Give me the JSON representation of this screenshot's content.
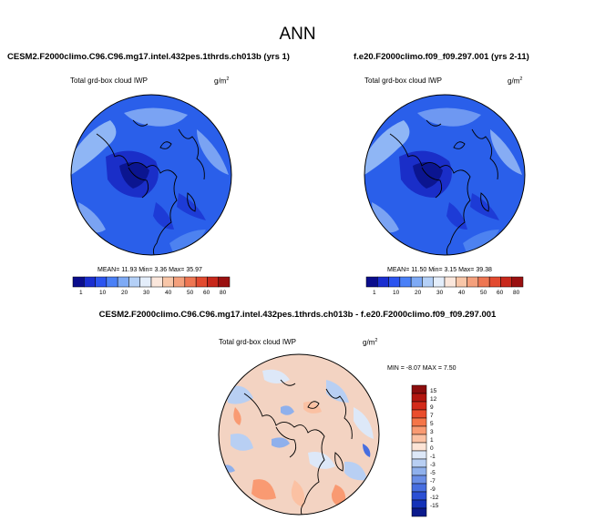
{
  "figure": {
    "season": "ANN"
  },
  "panel_left": {
    "case": "CESM2.F2000climo.C96.C96.mg17.intel.432pes.1thrds.ch013b (yrs 1)",
    "variable": "Total grd-box cloud IWP",
    "units_base": "g/m",
    "units_exp": "2",
    "stats": "MEAN= 11.93  Min=  3.36  Max= 35.97",
    "colorbar": {
      "labels": [
        "1",
        "10",
        "20",
        "30",
        "40",
        "50",
        "60",
        "80"
      ],
      "colors": [
        "#0b0d8c",
        "#1a2ed0",
        "#2b54f0",
        "#4a80f7",
        "#7eaaf5",
        "#b4d0f7",
        "#e4eefb",
        "#fbe7dc",
        "#f8c6a8",
        "#f4a07c",
        "#ee7652",
        "#e24a2f",
        "#c8281b",
        "#9a1010"
      ]
    },
    "map": {
      "background": "#2a5fea"
    }
  },
  "panel_right": {
    "case": "f.e20.F2000climo.f09_f09.297.001 (yrs 2-11)",
    "variable": "Total grd-box cloud IWP",
    "units_base": "g/m",
    "units_exp": "2",
    "stats": "MEAN= 11.50  Min=  3.15  Max= 39.38",
    "colorbar": {
      "labels": [
        "1",
        "10",
        "20",
        "30",
        "40",
        "50",
        "60",
        "80"
      ],
      "colors": [
        "#0b0d8c",
        "#1a2ed0",
        "#2b54f0",
        "#4a80f7",
        "#7eaaf5",
        "#b4d0f7",
        "#e4eefb",
        "#fbe7dc",
        "#f8c6a8",
        "#f4a07c",
        "#ee7652",
        "#e24a2f",
        "#c8281b",
        "#9a1010"
      ]
    },
    "map": {
      "background": "#2a5fea"
    }
  },
  "panel_diff": {
    "title": "CESM2.F2000climo.C96.C96.mg17.intel.432pes.1thrds.ch013b - f.e20.F2000climo.f09_f09.297.001",
    "variable": "Total grd-box cloud IWP",
    "units_base": "g/m",
    "units_exp": "2",
    "stats": "MIN = -8.07  MAX =  7.50",
    "colorbar": {
      "labels": [
        "15",
        "12",
        "9",
        "7",
        "5",
        "3",
        "1",
        "0",
        "-1",
        "-3",
        "-5",
        "-7",
        "-9",
        "-12",
        "-15"
      ],
      "colors": [
        "#8c0d0d",
        "#b3160f",
        "#d32a1a",
        "#ea4d2c",
        "#f57548",
        "#f99a72",
        "#fbc1a3",
        "#fde4d6",
        "#dde8f8",
        "#b8cff3",
        "#8fb0ec",
        "#6a8ee6",
        "#476ee0",
        "#2b4fd4",
        "#1432b8",
        "#0b1a8c"
      ]
    },
    "map": {
      "background": "#f3d3c2"
    }
  }
}
